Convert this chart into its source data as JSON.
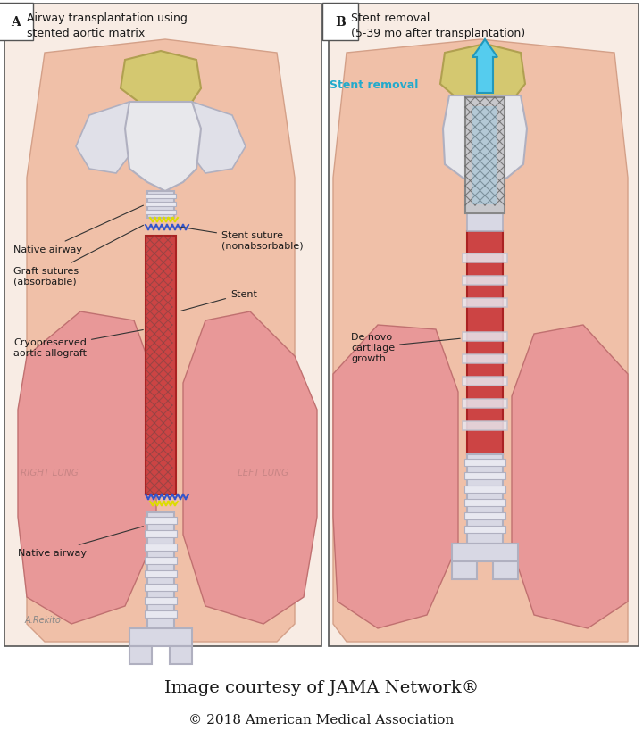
{
  "title1": "Image courtesy of JAMA Network®",
  "title2": "© 2018 American Medical Association",
  "panel_a_label": "A",
  "panel_b_label": "B",
  "panel_a_title_line1": "Airway transplantation using",
  "panel_a_title_line2": "stented aortic matrix",
  "panel_b_title_line1": "Stent removal",
  "panel_b_title_line2": "(5-39 mo after transplantation)",
  "label_native_airway_top": "Native airway",
  "label_graft_sutures": "Graft sutures\n(absorbable)",
  "label_cryopreserved": "Cryopreserved\naortic allograft",
  "label_stent_suture": "Stent suture\n(nonabsorbable)",
  "label_stent": "Stent",
  "label_right_lung": "RIGHT LUNG",
  "label_left_lung": "LEFT LUNG",
  "label_native_airway_bottom": "Native airway",
  "label_stent_removal": "Stent removal",
  "label_de_novo": "De novo\ncartilage\ngrowth",
  "bg_color": "#ffffff",
  "panel_border_color": "#333333",
  "text_color": "#1a1a1a",
  "label_color_cyan": "#00aacc",
  "lung_color": "#e8a0a0",
  "skin_color": "#f0c8b0",
  "graft_color": "#cc3333",
  "cartilage_color": "#e8e0d0",
  "stent_color": "#888888",
  "suture_color": "#4444aa",
  "title_fontsize": 16,
  "subtitle_fontsize": 11,
  "label_fontsize": 9,
  "panel_label_fontsize": 10,
  "caption_fontsize": 14
}
